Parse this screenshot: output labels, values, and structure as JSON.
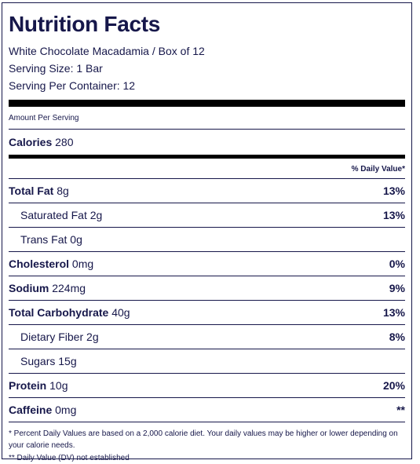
{
  "title": "Nutrition Facts",
  "product": "White Chocolate Macadamia / Box of 12",
  "serving_size": "Serving Size: 1 Bar",
  "servings_per_container": "Serving Per Container: 12",
  "amount_per_serving": "Amount Per Serving",
  "calories": {
    "label": "Calories",
    "value": "280"
  },
  "daily_value_header": "% Daily Value*",
  "nutrients": [
    {
      "name": "Total Fat",
      "amount": "8g",
      "dv": "13%"
    },
    {
      "name": "Saturated Fat",
      "amount": "2g",
      "dv": "13%"
    },
    {
      "name": "Trans Fat",
      "amount": "0g",
      "dv": ""
    },
    {
      "name": "Cholesterol",
      "amount": "0mg",
      "dv": "0%"
    },
    {
      "name": "Sodium",
      "amount": "224mg",
      "dv": "9%"
    },
    {
      "name": "Total Carbohydrate",
      "amount": "40g",
      "dv": "13%"
    },
    {
      "name": "Dietary Fiber",
      "amount": "2g",
      "dv": "8%"
    },
    {
      "name": "Sugars",
      "amount": "15g",
      "dv": ""
    },
    {
      "name": "Protein",
      "amount": "10g",
      "dv": "20%"
    },
    {
      "name": "Caffeine",
      "amount": "0mg",
      "dv": "**"
    }
  ],
  "footnote_1": "* Percent Daily Values are based on a 2,000 calorie diet. Your daily values may be higher or lower depending on your calorie needs.",
  "footnote_2": "** Daily Value (DV) not established",
  "colors": {
    "text": "#16174a",
    "bars": "#000000",
    "background": "#ffffff"
  }
}
